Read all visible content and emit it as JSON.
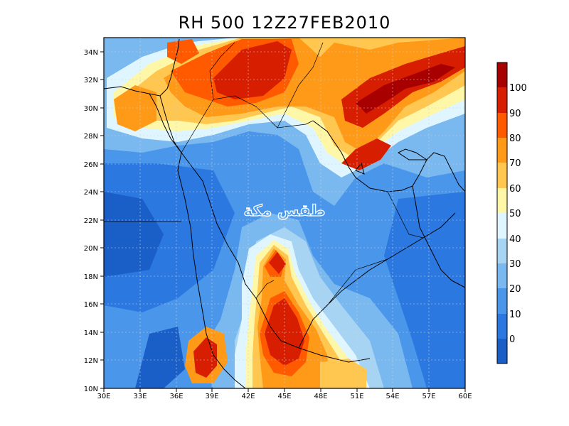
{
  "title": "RH 500  12Z27FEB2010",
  "watermark": "طقس مكة",
  "lat_labels": [
    "34N",
    "32N",
    "30N",
    "28N",
    "26N",
    "24N",
    "22N",
    "20N",
    "18N",
    "16N",
    "14N",
    "12N",
    "10N"
  ],
  "lon_labels": [
    "30E",
    "33E",
    "36E",
    "39E",
    "42E",
    "45E",
    "48E",
    "51E",
    "54E",
    "57E",
    "60E"
  ],
  "colorbar": {
    "labels": [
      "0",
      "10",
      "20",
      "30",
      "40",
      "50",
      "60",
      "70",
      "80",
      "90",
      "100"
    ],
    "colors": [
      "#1a5fc8",
      "#2a78e0",
      "#4a96ea",
      "#7ab8f0",
      "#a8d4f4",
      "#dff5ff",
      "#fff7a8",
      "#ffc650",
      "#ff9a18",
      "#ff5a00",
      "#d81e00",
      "#a80000"
    ]
  },
  "map": {
    "variable": "RH",
    "level": "500",
    "lon_range": [
      30,
      60
    ],
    "lat_range": [
      10,
      35
    ],
    "units": "%"
  }
}
